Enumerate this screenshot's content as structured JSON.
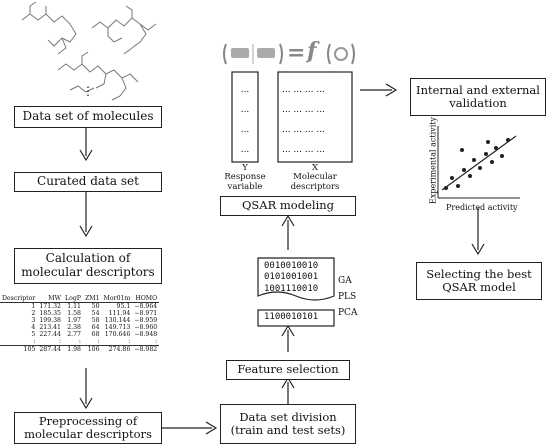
{
  "boxes": {
    "data_set": "Data set of molecules",
    "curated": "Curated data set",
    "calc_line1": "Calculation of",
    "calc_line2": "molecular descriptors",
    "preprocess_line1": "Preprocessing of",
    "preprocess_line2": "molecular descriptors",
    "division_line1": "Data set division",
    "division_line2": "(train and test sets)",
    "feature": "Feature selection",
    "qsar": "QSAR modeling",
    "validation_line1": "Internal and external",
    "validation_line2": "validation",
    "selecting_line1": "Selecting the best",
    "selecting_line2": "QSAR model"
  },
  "equation": {
    "equals": "=",
    "func": "f"
  },
  "matrix": {
    "y_label": "Y",
    "y_desc1": "Response",
    "y_desc2": "variable",
    "x_label": "X",
    "x_desc1": "Molecular",
    "x_desc2": "descriptors",
    "dots": "...",
    "dotrow": "... ... ... ..."
  },
  "binary": {
    "rows": [
      "0010010010",
      "0101001001",
      "1001110010"
    ],
    "selected": "1100010101",
    "methods": [
      "GA",
      "PLS",
      "PCA"
    ]
  },
  "scatter": {
    "xlabel": "Predicted activity",
    "ylabel": "Experimental activity"
  },
  "vdots": "⋮",
  "table": {
    "headers": [
      "Descriptor",
      "MW",
      "LogP",
      "ZM1",
      "Mor01m",
      "HOMO"
    ],
    "rows": [
      [
        "1",
        "171.32",
        "1.11",
        "50",
        "95.1",
        "−8.964"
      ],
      [
        "2",
        "185.35",
        "1.58",
        "54",
        "111.94",
        "−8.971"
      ],
      [
        "3",
        "199.38",
        "1.97",
        "58",
        "130.144",
        "−8.959"
      ],
      [
        "4",
        "213.41",
        "2.38",
        "64",
        "149.713",
        "−8.960"
      ],
      [
        "5",
        "227.44",
        "2.77",
        "68",
        "170.646",
        "−8.948"
      ],
      [
        ":",
        ":",
        ":",
        ":",
        ":",
        ":"
      ]
    ],
    "last": [
      "105",
      "287.44",
      "1.98",
      "106",
      "274.86",
      "−8.982"
    ]
  }
}
